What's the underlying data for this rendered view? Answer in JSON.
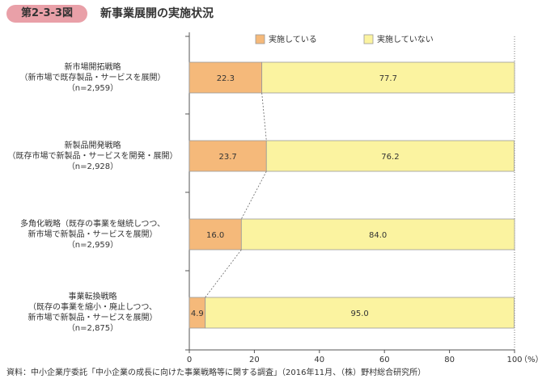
{
  "figure": {
    "number": "第2-3-3図",
    "title": "新事業展開の実施状況",
    "source": "資料：中小企業庁委託「中小企業の成長に向けた事業戦略等に関する調査」（2016年11月、（株）野村総合研究所）"
  },
  "colors": {
    "implemented": "#f5b97a",
    "not_implemented": "#fbf3a0",
    "bar_border": "#999999",
    "badge": "#e9a0a8"
  },
  "chart_data": {
    "type": "bar",
    "orientation": "horizontal",
    "stacked": true,
    "categories": [
      [
        "新市場開拓戦略",
        "（新市場で既存製品・サービスを展開）",
        "（n=2,959）"
      ],
      [
        "新製品開発戦略",
        "（既存市場で新製品・サービスを開発・展開）",
        "（n=2,928）"
      ],
      [
        "多角化戦略（既存の事業を継続しつつ、",
        "新市場で新製品・サービスを展開）",
        "（n=2,959）"
      ],
      [
        "事業転換戦略",
        "（既存の事業を縮小・廃止しつつ、",
        "新市場で新製品・サービスを展開）",
        "（n=2,875）"
      ]
    ],
    "series": [
      {
        "name": "実施している",
        "values": [
          22.3,
          23.7,
          16.0,
          4.9
        ],
        "labels": [
          "22.3",
          "23.7",
          "16.0",
          "4.9"
        ]
      },
      {
        "name": "実施していない",
        "values": [
          77.7,
          76.2,
          84.0,
          95.0
        ],
        "labels": [
          "77.7",
          "76.2",
          "84.0",
          "95.0"
        ]
      }
    ],
    "xlim": [
      0,
      100
    ],
    "xticks": [
      "0",
      "20",
      "40",
      "60",
      "80",
      "100"
    ],
    "xunit": "（%）",
    "legend_position": "top",
    "connector_lines": true,
    "reference_line_at_100": true
  }
}
